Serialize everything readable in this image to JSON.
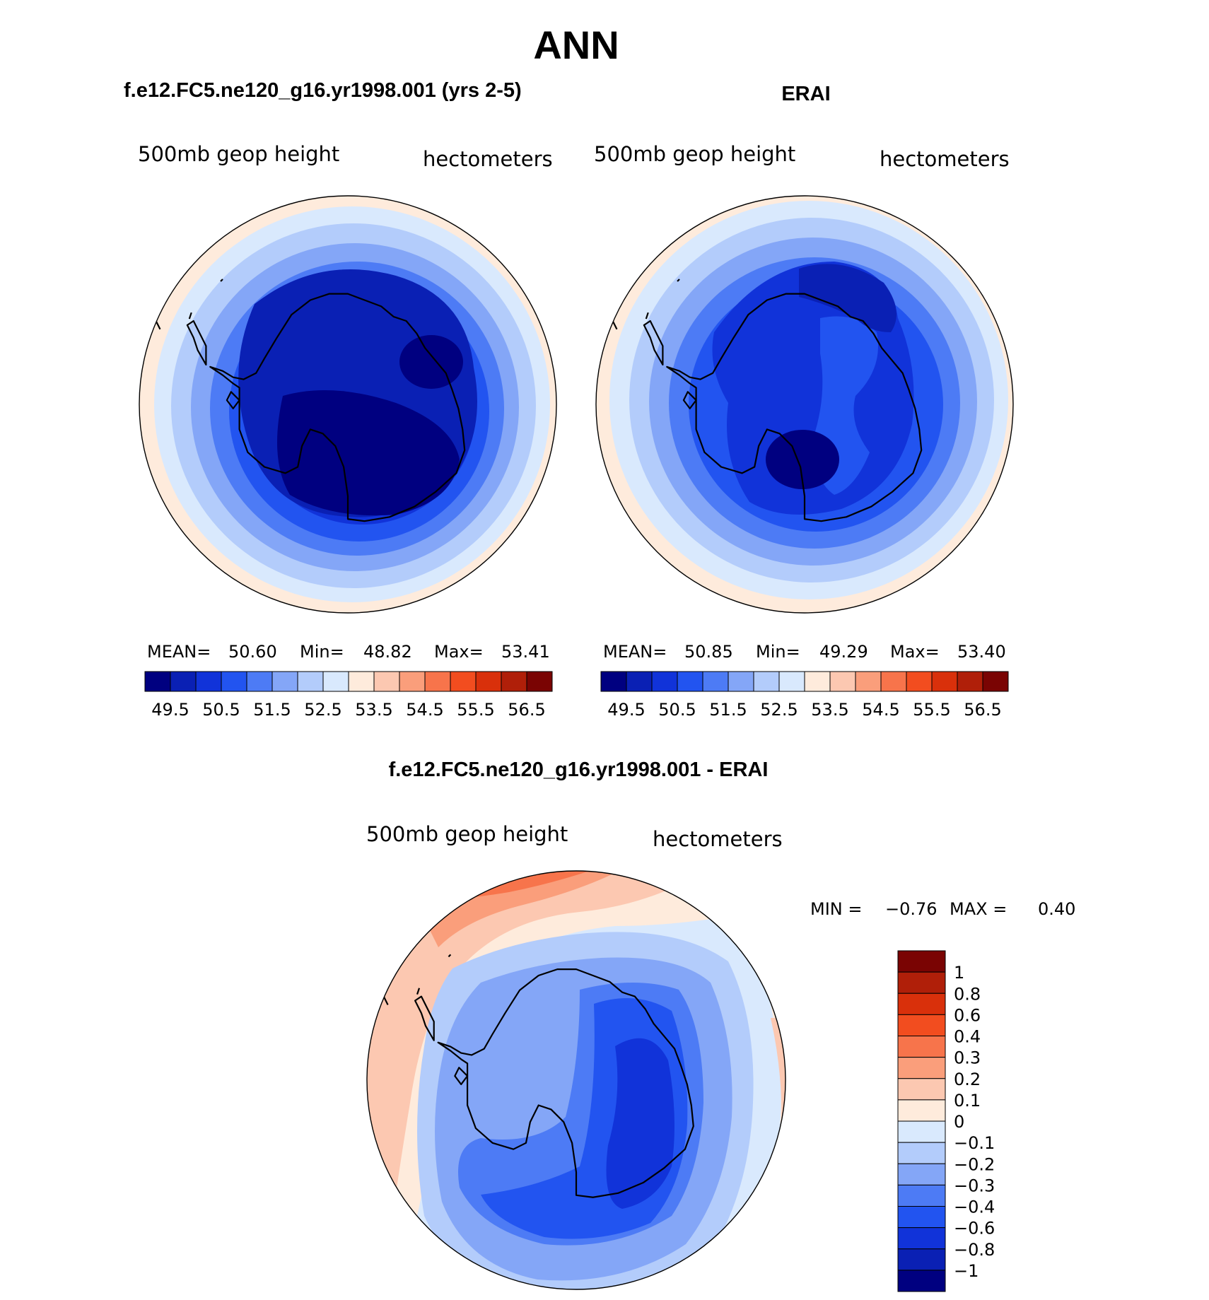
{
  "figure": {
    "title": "ANN",
    "difference_title": "f.e12.FC5.ne120_g16.yr1998.001 - ERAI"
  },
  "panels": [
    {
      "id": "model",
      "case_title": "f.e12.FC5.ne120_g16.yr1998.001 (yrs 2-5)",
      "variable": "500mb geop height",
      "units": "hectometers",
      "stats": {
        "mean_label": "MEAN=",
        "mean": "50.60",
        "min_label": "Min=",
        "min": "48.82",
        "max_label": "Max=",
        "max": "53.41"
      },
      "colorbar_ticks": [
        "49.5",
        "50.5",
        "51.5",
        "52.5",
        "53.5",
        "54.5",
        "55.5",
        "56.5"
      ]
    },
    {
      "id": "obs",
      "case_title": "ERAI",
      "variable": "500mb geop height",
      "units": "hectometers",
      "stats": {
        "mean_label": "MEAN=",
        "mean": "50.85",
        "min_label": "Min=",
        "min": "49.29",
        "max_label": "Max=",
        "max": "53.40"
      },
      "colorbar_ticks": [
        "49.5",
        "50.5",
        "51.5",
        "52.5",
        "53.5",
        "54.5",
        "55.5",
        "56.5"
      ]
    },
    {
      "id": "diff",
      "variable": "500mb geop height",
      "units": "hectometers",
      "stats": {
        "min_label": "MIN =",
        "min": "−0.76",
        "max_label": "MAX =",
        "max": "0.40"
      },
      "colorbar_ticks": [
        "1",
        "0.8",
        "0.6",
        "0.4",
        "0.3",
        "0.2",
        "0.1",
        "0",
        "−0.1",
        "−0.2",
        "−0.3",
        "−0.4",
        "−0.6",
        "−0.8",
        "−1"
      ]
    }
  ],
  "colors": {
    "height_scale": [
      "#000080",
      "#0a20b4",
      "#1133d9",
      "#2254f0",
      "#4d7bf5",
      "#84a6f7",
      "#b3ccfb",
      "#d9e9fd",
      "#feebdc",
      "#fcc8b1",
      "#fa9e7b",
      "#f7744b",
      "#f24d1f",
      "#d9300b",
      "#b01f09",
      "#7a0403"
    ],
    "diff_scale": [
      "#000080",
      "#0a20b4",
      "#1133d9",
      "#2254f0",
      "#4d7bf5",
      "#84a6f7",
      "#b3ccfb",
      "#d9e9fd",
      "#feebdc",
      "#fcc8b1",
      "#fa9e7b",
      "#f7744b",
      "#f24d1f",
      "#d9300b",
      "#b01f09",
      "#7a0403"
    ],
    "coastline": "#000000"
  },
  "map_data": {
    "projection": "south polar stereographic",
    "model_field": {
      "min": 48.82,
      "max": 53.41,
      "contour_levels": [
        49.5,
        50.0,
        50.5,
        51.0,
        51.5,
        52.0,
        52.5,
        53.0,
        53.5
      ]
    },
    "obs_field": {
      "min": 49.29,
      "max": 53.4,
      "contour_levels": [
        49.5,
        50.0,
        50.5,
        51.0,
        51.5,
        52.0,
        52.5,
        53.0,
        53.5
      ]
    },
    "diff_field": {
      "min": -0.76,
      "max": 0.4,
      "contour_levels": [
        -1,
        -0.8,
        -0.6,
        -0.4,
        -0.3,
        -0.2,
        -0.1,
        0,
        0.1,
        0.2,
        0.3,
        0.4,
        0.6,
        0.8,
        1
      ]
    }
  }
}
